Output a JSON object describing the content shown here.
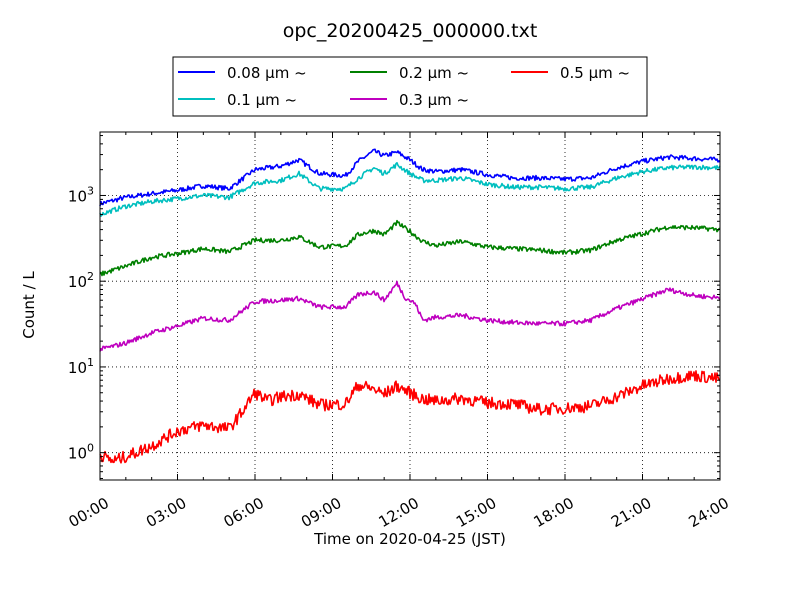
{
  "chart_data": {
    "type": "line",
    "title": "opc_20200425_000000.txt",
    "xlabel": "Time on 2020-04-25 (JST)",
    "ylabel": "Count / L",
    "x_unit": "hours",
    "xlim": [
      0,
      24
    ],
    "ylim": [
      0.48,
      5500
    ],
    "yscale": "log",
    "grid": true,
    "legend_position": "top",
    "x_ticks": [
      {
        "value": 0,
        "label": "00:00"
      },
      {
        "value": 3,
        "label": "03:00"
      },
      {
        "value": 6,
        "label": "06:00"
      },
      {
        "value": 9,
        "label": "09:00"
      },
      {
        "value": 12,
        "label": "12:00"
      },
      {
        "value": 15,
        "label": "15:00"
      },
      {
        "value": 18,
        "label": "18:00"
      },
      {
        "value": 21,
        "label": "21:00"
      },
      {
        "value": 24,
        "label": "24:00"
      }
    ],
    "y_ticks": [
      {
        "value": 1,
        "base": "10",
        "exp": "0"
      },
      {
        "value": 10,
        "base": "10",
        "exp": "1"
      },
      {
        "value": 100,
        "base": "10",
        "exp": "2"
      },
      {
        "value": 1000,
        "base": "10",
        "exp": "3"
      }
    ],
    "series": [
      {
        "name": "0.08 μm ~",
        "color": "#0000ff",
        "x": [
          0,
          1,
          2,
          3,
          4,
          5,
          6,
          7,
          7.7,
          8.5,
          9.5,
          10,
          10.6,
          11,
          11.5,
          12,
          12.5,
          13,
          14,
          15,
          16,
          17,
          18,
          19,
          20,
          21,
          22,
          23,
          24
        ],
        "values": [
          800,
          950,
          1050,
          1150,
          1300,
          1200,
          2000,
          2200,
          2600,
          1800,
          1700,
          2500,
          3300,
          2900,
          3200,
          2600,
          2000,
          1900,
          2000,
          1750,
          1600,
          1600,
          1550,
          1600,
          2100,
          2500,
          2800,
          2700,
          2600
        ]
      },
      {
        "name": "0.1 μm ~",
        "color": "#00bfbf",
        "x": [
          0,
          1,
          2,
          3,
          4,
          5,
          6,
          7,
          7.7,
          8.5,
          9.5,
          10,
          10.6,
          11,
          11.5,
          12,
          12.5,
          13,
          14,
          15,
          16,
          17,
          18,
          19,
          20,
          21,
          22,
          23,
          24
        ],
        "values": [
          600,
          750,
          850,
          920,
          1000,
          950,
          1400,
          1500,
          1800,
          1200,
          1200,
          1600,
          2100,
          1800,
          2300,
          1800,
          1500,
          1500,
          1600,
          1350,
          1250,
          1250,
          1200,
          1250,
          1600,
          1900,
          2100,
          2150,
          2100
        ]
      },
      {
        "name": "0.2 μm ~",
        "color": "#008000",
        "x": [
          0,
          1,
          2,
          3,
          4,
          5,
          6,
          7,
          7.7,
          8.5,
          9.5,
          10,
          10.6,
          11,
          11.5,
          12,
          12.5,
          13,
          14,
          15,
          16,
          17,
          18,
          19,
          20,
          21,
          22,
          23,
          24
        ],
        "values": [
          120,
          150,
          190,
          210,
          240,
          220,
          300,
          300,
          330,
          250,
          260,
          350,
          390,
          350,
          480,
          380,
          290,
          260,
          290,
          250,
          240,
          230,
          215,
          230,
          300,
          360,
          430,
          420,
          400
        ]
      },
      {
        "name": "0.3 μm ~",
        "color": "#bf00bf",
        "x": [
          0,
          1,
          2,
          3,
          4,
          5,
          6,
          7,
          7.7,
          8.5,
          9.5,
          10,
          10.6,
          11,
          11.5,
          11.8,
          12.2,
          12.5,
          13,
          14,
          15,
          16,
          17,
          18,
          19,
          20,
          21,
          22,
          23,
          24
        ],
        "values": [
          16,
          19,
          25,
          30,
          37,
          35,
          58,
          60,
          63,
          50,
          50,
          70,
          75,
          60,
          95,
          65,
          55,
          35,
          38,
          40,
          35,
          33,
          32,
          32,
          35,
          48,
          62,
          80,
          68,
          64
        ]
      },
      {
        "name": "0.5 μm ~",
        "color": "#ff0000",
        "x": [
          0,
          0.5,
          1,
          2,
          3,
          4,
          5,
          5.5,
          6,
          6.5,
          7,
          7.7,
          8.5,
          9.5,
          10,
          10.6,
          11,
          11.5,
          12,
          12.5,
          13,
          14,
          15,
          16,
          17,
          18,
          19,
          20,
          21,
          22,
          23,
          24
        ],
        "values": [
          0.95,
          0.8,
          0.9,
          1.2,
          1.8,
          2.1,
          1.9,
          3.0,
          5.0,
          4.0,
          4.5,
          4.8,
          3.6,
          3.7,
          6.2,
          5.5,
          4.8,
          6.0,
          5.0,
          4.2,
          4.0,
          4.3,
          3.8,
          3.7,
          3.2,
          3.3,
          3.5,
          4.5,
          6.0,
          7.3,
          8.0,
          7.2
        ]
      }
    ]
  }
}
